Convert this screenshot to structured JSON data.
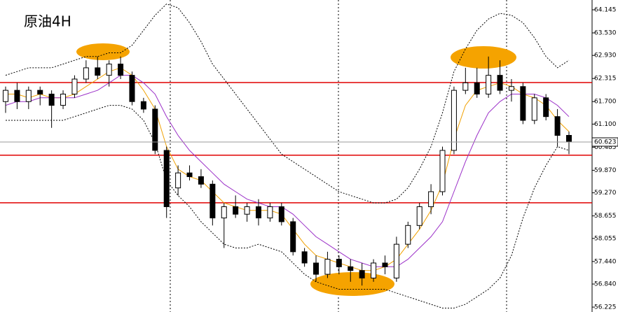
{
  "chart_data": {
    "type": "candlestick",
    "title": "原油4H",
    "ylim": [
      56.095,
      64.406
    ],
    "yticks": [
      64.145,
      {
        "value": 63.53,
        "label": "63.530"
      },
      {
        "value": 62.93,
        "label": "62.930"
      },
      62.315,
      {
        "value": 61.7,
        "label": "61.700"
      },
      {
        "value": 61.1,
        "label": "61.100"
      },
      60.485,
      {
        "value": 59.87,
        "label": "59.870"
      },
      {
        "value": 59.27,
        "label": "59.270"
      },
      58.655,
      58.055,
      {
        "value": 57.44,
        "label": "57.440"
      },
      {
        "value": 56.84,
        "label": "56.840"
      },
      56.225
    ],
    "open": [
      61.7,
      62.0,
      61.7,
      62.0,
      61.9,
      61.6,
      61.9,
      62.3,
      62.6,
      62.4,
      62.7,
      62.4,
      61.7,
      61.5,
      60.4,
      59.4,
      59.8,
      59.7,
      59.5,
      58.6,
      58.9,
      58.7,
      58.9,
      58.6,
      58.9,
      58.5,
      57.7,
      57.4,
      57.1,
      57.5,
      57.3,
      57.2,
      57.0,
      57.4,
      57.0,
      57.9,
      58.4,
      58.9,
      59.3,
      60.4,
      62.0,
      62.2,
      61.9,
      62.4,
      62.0,
      62.1,
      61.2,
      61.8,
      61.3,
      60.8
    ],
    "high": [
      62.1,
      62.2,
      62.1,
      62.1,
      62.0,
      62.0,
      62.4,
      62.8,
      62.9,
      62.8,
      62.9,
      62.5,
      61.8,
      61.6,
      60.5,
      60.0,
      60.0,
      59.9,
      59.6,
      59.0,
      59.2,
      59.0,
      59.1,
      59.0,
      59.0,
      58.6,
      57.8,
      57.6,
      57.7,
      57.6,
      57.5,
      57.4,
      57.5,
      57.6,
      58.1,
      58.5,
      59.0,
      59.5,
      60.5,
      62.1,
      62.6,
      62.6,
      62.9,
      62.8,
      62.3,
      62.2,
      61.9,
      61.9,
      61.5,
      60.9
    ],
    "low": [
      61.4,
      61.5,
      61.5,
      61.6,
      61.0,
      61.5,
      61.8,
      62.2,
      62.3,
      62.1,
      62.3,
      61.6,
      61.4,
      60.3,
      58.6,
      59.2,
      59.6,
      59.4,
      58.4,
      57.8,
      58.6,
      58.5,
      58.4,
      58.5,
      58.4,
      57.6,
      57.3,
      56.9,
      57.0,
      57.1,
      56.9,
      56.8,
      56.9,
      57.1,
      56.9,
      57.8,
      58.3,
      58.7,
      59.2,
      60.3,
      61.9,
      61.8,
      61.8,
      61.9,
      61.7,
      61.1,
      61.1,
      61.2,
      60.5,
      60.3
    ],
    "close": [
      62.0,
      61.7,
      62.0,
      61.9,
      61.6,
      61.9,
      62.3,
      62.6,
      62.4,
      62.7,
      62.4,
      61.7,
      61.5,
      60.4,
      58.9,
      59.8,
      59.7,
      59.5,
      58.6,
      58.9,
      58.7,
      58.9,
      58.6,
      58.9,
      58.5,
      57.7,
      57.4,
      57.1,
      57.5,
      57.3,
      57.2,
      57.0,
      57.4,
      57.3,
      57.9,
      58.4,
      58.9,
      59.3,
      60.4,
      62.0,
      62.2,
      61.9,
      62.4,
      62.0,
      62.1,
      61.2,
      61.8,
      61.3,
      60.8,
      60.623
    ],
    "series": [
      {
        "color": "#000000",
        "dash": true,
        "values": [
          62.4,
          62.5,
          62.6,
          62.6,
          62.6,
          62.7,
          62.8,
          62.9,
          62.9,
          63.0,
          63.0,
          63.2,
          63.6,
          64.0,
          64.3,
          64.2,
          63.8,
          63.3,
          62.7,
          62.3,
          61.9,
          61.5,
          61.1,
          60.7,
          60.3,
          60.1,
          59.9,
          59.7,
          59.5,
          59.3,
          59.2,
          59.1,
          59.0,
          59.0,
          59.1,
          59.4,
          59.9,
          60.5,
          61.4,
          62.5,
          63.1,
          63.6,
          63.9,
          64.05,
          64.0,
          63.8,
          63.4,
          62.9,
          62.6,
          62.8
        ]
      },
      {
        "color": "#000000",
        "dash": true,
        "values": [
          61.2,
          61.2,
          61.2,
          61.2,
          61.2,
          61.2,
          61.3,
          61.4,
          61.5,
          61.6,
          61.6,
          61.5,
          61.2,
          60.6,
          59.6,
          59.2,
          58.9,
          58.5,
          58.2,
          57.9,
          57.8,
          57.8,
          57.9,
          57.8,
          57.7,
          57.4,
          57.1,
          56.9,
          56.8,
          56.7,
          56.7,
          56.7,
          56.7,
          56.7,
          56.6,
          56.5,
          56.4,
          56.3,
          56.2,
          56.2,
          56.3,
          56.5,
          56.7,
          57.0,
          57.6,
          58.6,
          59.4,
          60.0,
          60.5,
          60.4
        ]
      },
      {
        "color": "#f0a000",
        "dash": false,
        "values": [
          61.9,
          61.9,
          61.8,
          61.9,
          61.8,
          61.8,
          61.9,
          62.1,
          62.3,
          62.5,
          62.6,
          62.4,
          62.0,
          61.5,
          60.5,
          59.9,
          59.7,
          59.6,
          59.3,
          59.0,
          58.9,
          58.8,
          58.8,
          58.8,
          58.7,
          58.3,
          57.9,
          57.6,
          57.5,
          57.4,
          57.3,
          57.2,
          57.2,
          57.3,
          57.5,
          57.9,
          58.3,
          58.8,
          59.5,
          60.7,
          61.6,
          62.0,
          62.1,
          62.2,
          62.1,
          61.9,
          61.8,
          61.6,
          61.2,
          60.9
        ]
      },
      {
        "color": "#9b30c8",
        "dash": false,
        "values": [
          61.6,
          61.7,
          61.7,
          61.8,
          61.8,
          61.8,
          61.8,
          61.9,
          62.0,
          62.2,
          62.4,
          62.4,
          62.2,
          61.9,
          61.3,
          60.8,
          60.4,
          60.1,
          59.8,
          59.5,
          59.3,
          59.1,
          59.0,
          58.9,
          58.9,
          58.7,
          58.4,
          58.1,
          57.9,
          57.7,
          57.5,
          57.4,
          57.3,
          57.3,
          57.3,
          57.5,
          57.8,
          58.1,
          58.5,
          59.3,
          60.1,
          60.8,
          61.4,
          61.7,
          61.9,
          61.9,
          61.9,
          61.8,
          61.6,
          61.3
        ]
      }
    ],
    "hlines": [
      62.208,
      60.272,
      59.005
    ],
    "hline_color": "#e00000",
    "last_price": 60.623
  }
}
